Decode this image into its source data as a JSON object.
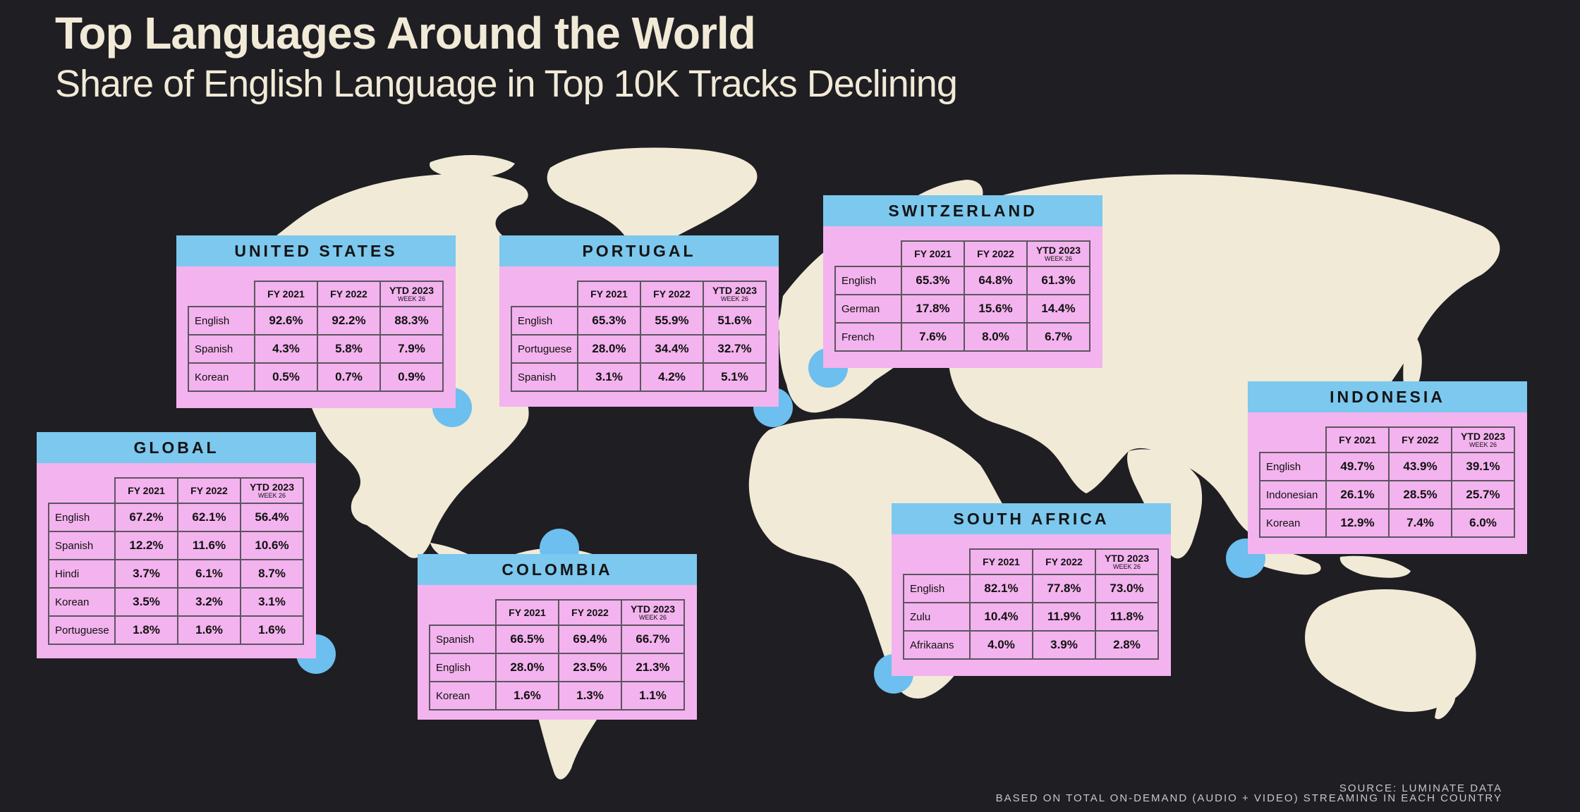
{
  "title": "Top Languages Around the World",
  "subtitle": "Share of English Language in Top 10K Tracks Declining",
  "colors": {
    "background": "#1f1e23",
    "land": "#f1ead7",
    "header": "#7cc8ee",
    "card": "#f3b3ee",
    "marker": "#6cbfee"
  },
  "columns": {
    "fy2021": "FY 2021",
    "fy2022": "FY 2022",
    "ytd": "YTD 2023",
    "week": "WEEK 26"
  },
  "cards": [
    {
      "name": "UNITED STATES",
      "rows": [
        {
          "language": "English",
          "fy2021": "92.6%",
          "fy2022": "92.2%",
          "ytd": "88.3%"
        },
        {
          "language": "Spanish",
          "fy2021": "4.3%",
          "fy2022": "5.8%",
          "ytd": "7.9%"
        },
        {
          "language": "Korean",
          "fy2021": "0.5%",
          "fy2022": "0.7%",
          "ytd": "0.9%"
        }
      ]
    },
    {
      "name": "PORTUGAL",
      "rows": [
        {
          "language": "English",
          "fy2021": "65.3%",
          "fy2022": "55.9%",
          "ytd": "51.6%"
        },
        {
          "language": "Portuguese",
          "fy2021": "28.0%",
          "fy2022": "34.4%",
          "ytd": "32.7%"
        },
        {
          "language": "Spanish",
          "fy2021": "3.1%",
          "fy2022": "4.2%",
          "ytd": "5.1%"
        }
      ]
    },
    {
      "name": "SWITZERLAND",
      "rows": [
        {
          "language": "English",
          "fy2021": "65.3%",
          "fy2022": "64.8%",
          "ytd": "61.3%"
        },
        {
          "language": "German",
          "fy2021": "17.8%",
          "fy2022": "15.6%",
          "ytd": "14.4%"
        },
        {
          "language": "French",
          "fy2021": "7.6%",
          "fy2022": "8.0%",
          "ytd": "6.7%"
        }
      ]
    },
    {
      "name": "INDONESIA",
      "rows": [
        {
          "language": "English",
          "fy2021": "49.7%",
          "fy2022": "43.9%",
          "ytd": "39.1%"
        },
        {
          "language": "Indonesian",
          "fy2021": "26.1%",
          "fy2022": "28.5%",
          "ytd": "25.7%"
        },
        {
          "language": "Korean",
          "fy2021": "12.9%",
          "fy2022": "7.4%",
          "ytd": "6.0%"
        }
      ]
    },
    {
      "name": "GLOBAL",
      "rows": [
        {
          "language": "English",
          "fy2021": "67.2%",
          "fy2022": "62.1%",
          "ytd": "56.4%"
        },
        {
          "language": "Spanish",
          "fy2021": "12.2%",
          "fy2022": "11.6%",
          "ytd": "10.6%"
        },
        {
          "language": "Hindi",
          "fy2021": "3.7%",
          "fy2022": "6.1%",
          "ytd": "8.7%"
        },
        {
          "language": "Korean",
          "fy2021": "3.5%",
          "fy2022": "3.2%",
          "ytd": "3.1%"
        },
        {
          "language": "Portuguese",
          "fy2021": "1.8%",
          "fy2022": "1.6%",
          "ytd": "1.6%"
        }
      ]
    },
    {
      "name": "COLOMBIA",
      "rows": [
        {
          "language": "Spanish",
          "fy2021": "66.5%",
          "fy2022": "69.4%",
          "ytd": "66.7%"
        },
        {
          "language": "English",
          "fy2021": "28.0%",
          "fy2022": "23.5%",
          "ytd": "21.3%"
        },
        {
          "language": "Korean",
          "fy2021": "1.6%",
          "fy2022": "1.3%",
          "ytd": "1.1%"
        }
      ]
    },
    {
      "name": "SOUTH AFRICA",
      "rows": [
        {
          "language": "English",
          "fy2021": "82.1%",
          "fy2022": "77.8%",
          "ytd": "73.0%"
        },
        {
          "language": "Zulu",
          "fy2021": "10.4%",
          "fy2022": "11.9%",
          "ytd": "11.8%"
        },
        {
          "language": "Afrikaans",
          "fy2021": "4.0%",
          "fy2022": "3.9%",
          "ytd": "2.8%"
        }
      ]
    }
  ],
  "footer": {
    "source": "SOURCE: LUMINATE DATA",
    "note": "BASED ON TOTAL ON-DEMAND (AUDIO + VIDEO) STREAMING IN EACH COUNTRY"
  }
}
